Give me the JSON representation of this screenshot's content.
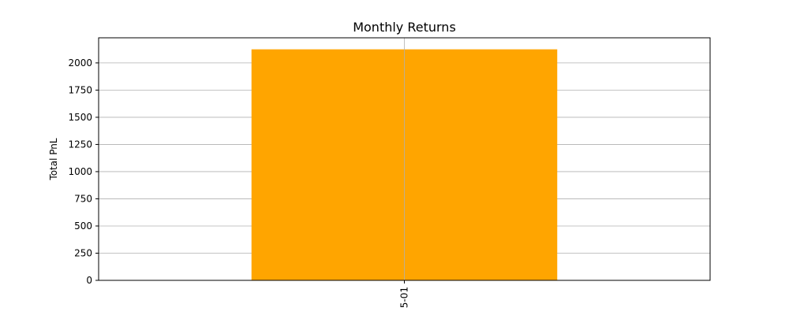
{
  "chart_data": {
    "type": "bar",
    "title": "Monthly Returns",
    "xlabel": "",
    "ylabel": "Total PnL",
    "categories": [
      "5-01"
    ],
    "values": [
      2125
    ],
    "ylim": [
      0,
      2231
    ],
    "yticks": [
      0,
      250,
      500,
      750,
      1000,
      1250,
      1500,
      1750,
      2000
    ],
    "grid": true,
    "bar_color": "#FFA500",
    "grid_color": "#b0b0b0"
  }
}
